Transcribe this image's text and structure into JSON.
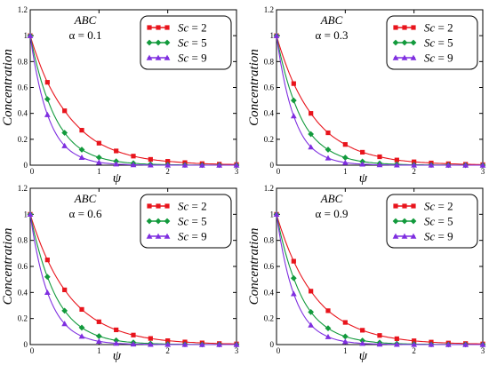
{
  "chart_data": [
    {
      "type": "scatter",
      "panel": "top-left",
      "annotation_lines": [
        "ABC",
        "α = 0.1"
      ],
      "xlabel": "ψ",
      "ylabel": "Concentration",
      "xlim": [
        0,
        3
      ],
      "ylim": [
        0,
        1.2
      ],
      "x_ticks": [
        0,
        1,
        2,
        3
      ],
      "y_ticks": [
        0,
        0.2,
        0.4,
        0.6,
        0.8,
        1,
        1.2
      ],
      "grid": false,
      "legend_position": "top-right",
      "x_markers": [
        0,
        0.25,
        0.5,
        0.75,
        1,
        1.25,
        1.5,
        1.75,
        2,
        2.25,
        2.5,
        2.75,
        3
      ],
      "series": [
        {
          "name": "Sc = 2",
          "legend_name": "Sc",
          "legend_value": "2",
          "color": "#e8141c",
          "marker": "square",
          "values": [
            1,
            0.64,
            0.42,
            0.27,
            0.17,
            0.11,
            0.07,
            0.045,
            0.03,
            0.02,
            0.012,
            0.008,
            0.005
          ]
        },
        {
          "name": "Sc = 5",
          "legend_name": "Sc",
          "legend_value": "5",
          "color": "#129a3c",
          "marker": "diamond",
          "values": [
            1,
            0.51,
            0.25,
            0.12,
            0.06,
            0.03,
            0.015,
            0.007,
            0.004,
            0.002,
            0.001,
            0.0005,
            0.0002
          ]
        },
        {
          "name": "Sc = 9",
          "legend_name": "Sc",
          "legend_value": "9",
          "color": "#7f2fe0",
          "marker": "triangle",
          "values": [
            1,
            0.39,
            0.15,
            0.06,
            0.022,
            0.009,
            0.003,
            0.001,
            0.0005,
            0.0002,
            0.0001,
            0,
            0
          ]
        }
      ]
    },
    {
      "type": "scatter",
      "panel": "top-right",
      "annotation_lines": [
        "ABC",
        "α = 0.3"
      ],
      "xlabel": "ψ",
      "ylabel": "Concentration",
      "xlim": [
        0,
        3
      ],
      "ylim": [
        0,
        1.2
      ],
      "x_ticks": [
        0,
        1,
        2,
        3
      ],
      "y_ticks": [
        0,
        0.2,
        0.4,
        0.6,
        0.8,
        1,
        1.2
      ],
      "grid": false,
      "legend_position": "top-right",
      "x_markers": [
        0,
        0.25,
        0.5,
        0.75,
        1,
        1.25,
        1.5,
        1.75,
        2,
        2.25,
        2.5,
        2.75,
        3
      ],
      "series": [
        {
          "name": "Sc = 2",
          "legend_name": "Sc",
          "legend_value": "2",
          "color": "#e8141c",
          "marker": "square",
          "values": [
            1,
            0.63,
            0.4,
            0.25,
            0.16,
            0.1,
            0.065,
            0.04,
            0.026,
            0.017,
            0.011,
            0.007,
            0.004
          ]
        },
        {
          "name": "Sc = 5",
          "legend_name": "Sc",
          "legend_value": "5",
          "color": "#129a3c",
          "marker": "diamond",
          "values": [
            1,
            0.5,
            0.24,
            0.12,
            0.058,
            0.028,
            0.014,
            0.007,
            0.003,
            0.002,
            0.001,
            0.0004,
            0.0002
          ]
        },
        {
          "name": "Sc = 9",
          "legend_name": "Sc",
          "legend_value": "9",
          "color": "#7f2fe0",
          "marker": "triangle",
          "values": [
            1,
            0.38,
            0.14,
            0.055,
            0.02,
            0.008,
            0.003,
            0.001,
            0.0004,
            0.0002,
            0.0001,
            0,
            0
          ]
        }
      ]
    },
    {
      "type": "scatter",
      "panel": "bottom-left",
      "annotation_lines": [
        "ABC",
        "α = 0.6"
      ],
      "xlabel": "ψ",
      "ylabel": "Concentration",
      "xlim": [
        0,
        3
      ],
      "ylim": [
        0,
        1.2
      ],
      "x_ticks": [
        0,
        1,
        2,
        3
      ],
      "y_ticks": [
        0,
        0.2,
        0.4,
        0.6,
        0.8,
        1,
        1.2
      ],
      "grid": false,
      "legend_position": "top-right",
      "x_markers": [
        0,
        0.25,
        0.5,
        0.75,
        1,
        1.25,
        1.5,
        1.75,
        2,
        2.25,
        2.5,
        2.75,
        3
      ],
      "series": [
        {
          "name": "Sc = 2",
          "legend_name": "Sc",
          "legend_value": "2",
          "color": "#e8141c",
          "marker": "square",
          "values": [
            1,
            0.65,
            0.42,
            0.27,
            0.175,
            0.113,
            0.073,
            0.047,
            0.03,
            0.02,
            0.013,
            0.008,
            0.005
          ]
        },
        {
          "name": "Sc = 5",
          "legend_name": "Sc",
          "legend_value": "5",
          "color": "#129a3c",
          "marker": "diamond",
          "values": [
            1,
            0.52,
            0.26,
            0.13,
            0.065,
            0.032,
            0.016,
            0.008,
            0.004,
            0.002,
            0.001,
            0.0005,
            0.0002
          ]
        },
        {
          "name": "Sc = 9",
          "legend_name": "Sc",
          "legend_value": "9",
          "color": "#7f2fe0",
          "marker": "triangle",
          "values": [
            1,
            0.4,
            0.16,
            0.064,
            0.025,
            0.01,
            0.004,
            0.0016,
            0.0006,
            0.0003,
            0.0001,
            0,
            0
          ]
        }
      ]
    },
    {
      "type": "scatter",
      "panel": "bottom-right",
      "annotation_lines": [
        "ABC",
        "α = 0.9"
      ],
      "xlabel": "ψ",
      "ylabel": "Concentration",
      "xlim": [
        0,
        3
      ],
      "ylim": [
        0,
        1.2
      ],
      "x_ticks": [
        0,
        1,
        2,
        3
      ],
      "y_ticks": [
        0,
        0.2,
        0.4,
        0.6,
        0.8,
        1,
        1.2
      ],
      "grid": false,
      "legend_position": "top-right",
      "x_markers": [
        0,
        0.25,
        0.5,
        0.75,
        1,
        1.25,
        1.5,
        1.75,
        2,
        2.25,
        2.5,
        2.75,
        3
      ],
      "series": [
        {
          "name": "Sc = 2",
          "legend_name": "Sc",
          "legend_value": "2",
          "color": "#e8141c",
          "marker": "square",
          "values": [
            1,
            0.64,
            0.41,
            0.26,
            0.17,
            0.11,
            0.07,
            0.045,
            0.029,
            0.019,
            0.012,
            0.008,
            0.005
          ]
        },
        {
          "name": "Sc = 5",
          "legend_name": "Sc",
          "legend_value": "5",
          "color": "#129a3c",
          "marker": "diamond",
          "values": [
            1,
            0.51,
            0.25,
            0.125,
            0.062,
            0.031,
            0.015,
            0.007,
            0.004,
            0.002,
            0.001,
            0.0005,
            0.0002
          ]
        },
        {
          "name": "Sc = 9",
          "legend_name": "Sc",
          "legend_value": "9",
          "color": "#7f2fe0",
          "marker": "triangle",
          "values": [
            1,
            0.39,
            0.15,
            0.06,
            0.023,
            0.009,
            0.0035,
            0.0014,
            0.0005,
            0.0002,
            0.0001,
            0,
            0
          ]
        }
      ]
    }
  ]
}
